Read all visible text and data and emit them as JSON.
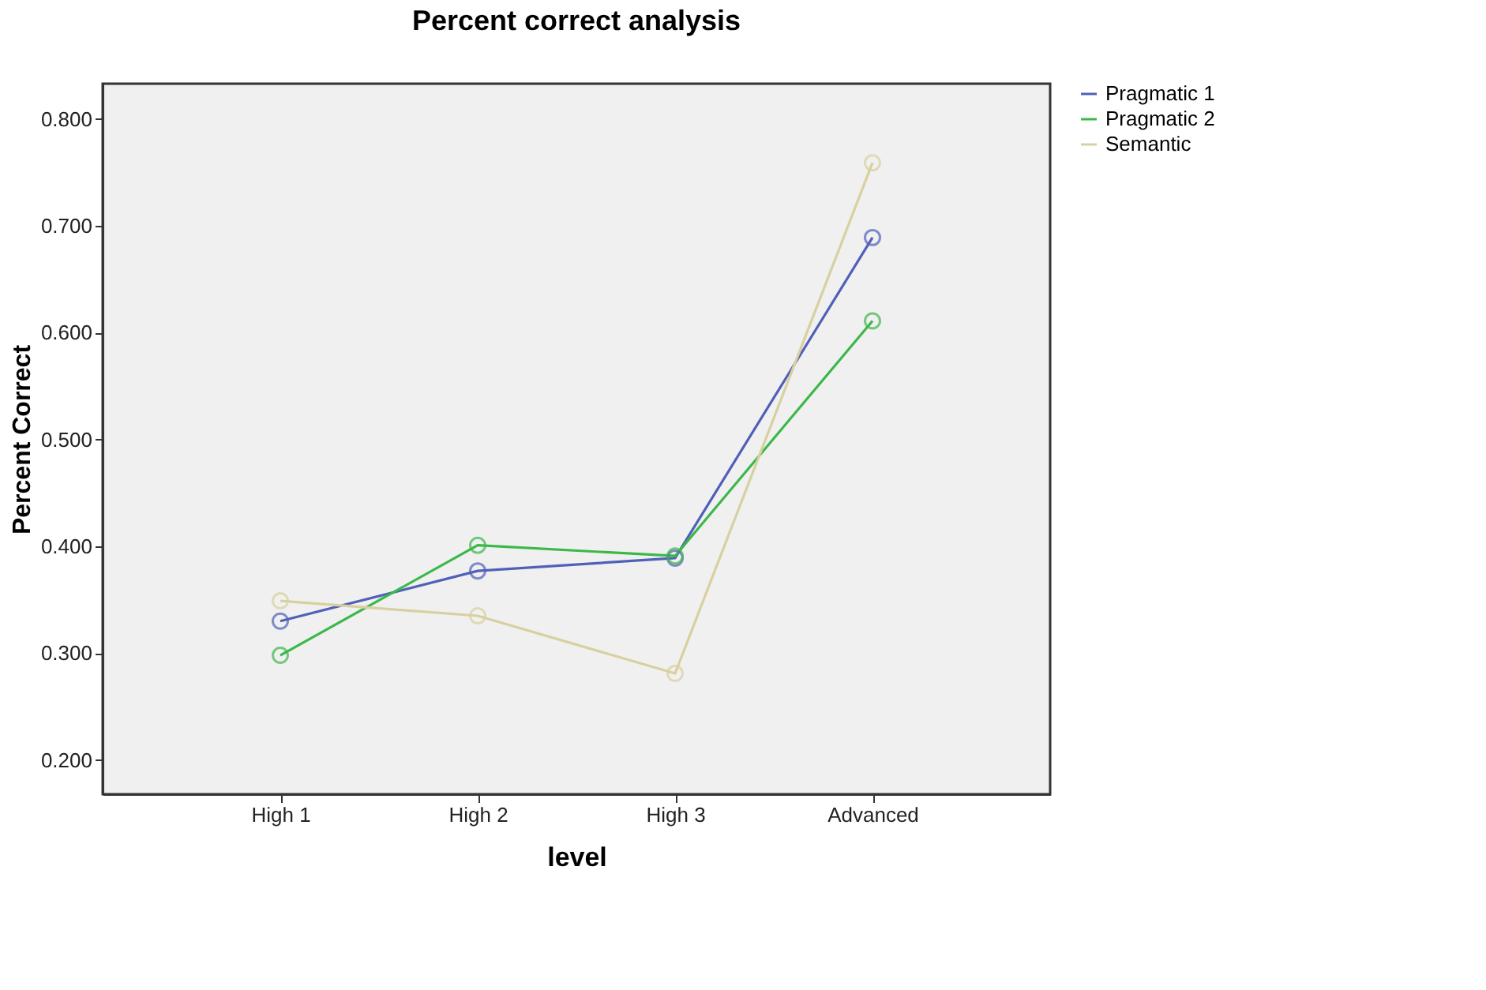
{
  "chart_data": {
    "type": "line",
    "title": "Percent correct analysis",
    "xlabel": "level",
    "ylabel": "Percent Correct",
    "categories": [
      "High 1",
      "High 2",
      "High 3",
      "Advanced"
    ],
    "series": [
      {
        "name": "Pragmatic 1",
        "color": "#5060b8",
        "values": [
          0.33,
          0.377,
          0.389,
          0.689
        ]
      },
      {
        "name": "Pragmatic 2",
        "color": "#3cb84a",
        "values": [
          0.298,
          0.401,
          0.391,
          0.611
        ]
      },
      {
        "name": "Semantic",
        "color": "#d8d0a0",
        "values": [
          0.349,
          0.335,
          0.281,
          0.759
        ]
      }
    ],
    "ylim": [
      0.168,
      0.833
    ],
    "yticks": [
      {
        "value": 0.2,
        "label": "0.200"
      },
      {
        "value": 0.3,
        "label": "0.300"
      },
      {
        "value": 0.4,
        "label": "0.400"
      },
      {
        "value": 0.5,
        "label": "0.500"
      },
      {
        "value": 0.6,
        "label": "0.600"
      },
      {
        "value": 0.7,
        "label": "0.700"
      },
      {
        "value": 0.8,
        "label": "0.800"
      }
    ],
    "grid": false,
    "legend": "top right",
    "marker": "circle",
    "line_style": "solid"
  }
}
